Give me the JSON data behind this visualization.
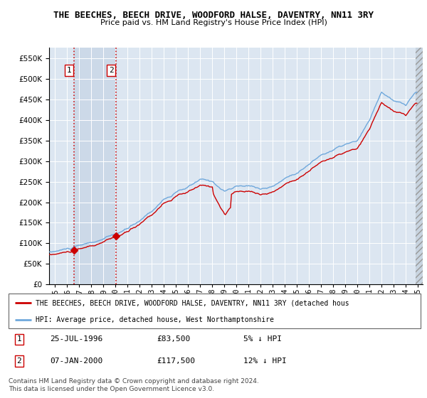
{
  "title": "THE BEECHES, BEECH DRIVE, WOODFORD HALSE, DAVENTRY, NN11 3RY",
  "subtitle": "Price paid vs. HM Land Registry's House Price Index (HPI)",
  "legend_line1": "THE BEECHES, BEECH DRIVE, WOODFORD HALSE, DAVENTRY, NN11 3RY (detached hous",
  "legend_line2": "HPI: Average price, detached house, West Northamptonshire",
  "footnote1": "Contains HM Land Registry data © Crown copyright and database right 2024.",
  "footnote2": "This data is licensed under the Open Government Licence v3.0.",
  "transaction1_date": "25-JUL-1996",
  "transaction1_price": "£83,500",
  "transaction1_hpi": "5% ↓ HPI",
  "transaction2_date": "07-JAN-2000",
  "transaction2_price": "£117,500",
  "transaction2_hpi": "12% ↓ HPI",
  "hpi_color": "#6fa8dc",
  "price_color": "#cc0000",
  "marker_color": "#cc0000",
  "ylim": [
    0,
    575000
  ],
  "bg_plot_color": "#dce6f1",
  "bg_highlight_color": "#ccd9e8",
  "grid_color": "#ffffff",
  "transaction1_x": 1996.56,
  "transaction1_y": 83500,
  "transaction2_x": 2000.03,
  "transaction2_y": 117500,
  "vline1_x": 1996.56,
  "vline2_x": 2000.03,
  "xmin": 1994.5,
  "xmax": 2025.4,
  "hatch_right_start": 2024.83
}
